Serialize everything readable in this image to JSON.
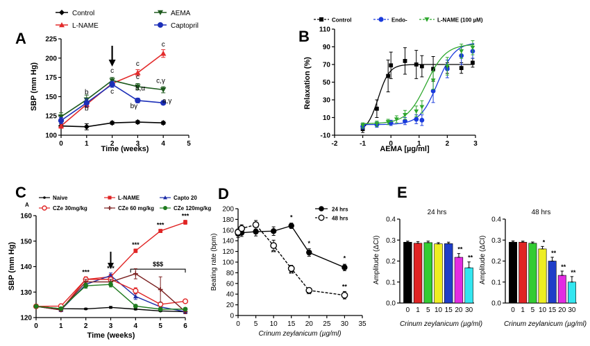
{
  "panel_labels": [
    "A",
    "B",
    "C",
    "D",
    "E"
  ],
  "chart_data": [
    {
      "panel": "A",
      "type": "line",
      "xlabel": "Time (weeks)",
      "ylabel": "SBP (mm Hg)",
      "xlim": [
        0,
        5
      ],
      "ylim": [
        100,
        225
      ],
      "xticks": [
        0,
        1,
        2,
        3,
        4,
        5
      ],
      "yticks": [
        100,
        125,
        150,
        175,
        200,
        225
      ],
      "arrow_at_x": 2,
      "series": [
        {
          "name": "Control",
          "color": "#000000",
          "marker": "diamond",
          "x": [
            0,
            1,
            2,
            3,
            4
          ],
          "y": [
            112,
            111,
            116,
            117,
            116
          ],
          "err": [
            3,
            4,
            2,
            2,
            2
          ]
        },
        {
          "name": "L-NAME",
          "color": "#e32b2b",
          "marker": "triangle",
          "x": [
            0,
            1,
            2,
            3,
            4
          ],
          "y": [
            112,
            140,
            167,
            181,
            206
          ],
          "err": [
            3,
            4,
            3,
            4,
            5
          ]
        },
        {
          "name": "AEMA",
          "color": "#1e5a1e",
          "marker": "triangle-down",
          "x": [
            0,
            1,
            2,
            3,
            4
          ],
          "y": [
            124,
            146,
            171,
            163,
            159
          ],
          "err": [
            5,
            6,
            4,
            4,
            4
          ]
        },
        {
          "name": "Captopril",
          "color": "#1c2fb8",
          "marker": "circle",
          "x": [
            0,
            1,
            2,
            3,
            4
          ],
          "y": [
            119,
            142,
            166,
            145,
            142
          ],
          "err": [
            4,
            5,
            4,
            3,
            2
          ]
        }
      ],
      "annotations": [
        {
          "text": "b",
          "x": 1,
          "y": 153
        },
        {
          "text": "b",
          "x": 1,
          "y": 132
        },
        {
          "text": "c",
          "x": 2,
          "y": 181
        },
        {
          "text": "c",
          "x": 2,
          "y": 154
        },
        {
          "text": "c",
          "x": 3,
          "y": 190
        },
        {
          "text": "c",
          "x": 3,
          "y": 173
        },
        {
          "text": "b,α",
          "x": 3.1,
          "y": 158
        },
        {
          "text": "bγ",
          "x": 2.85,
          "y": 135
        },
        {
          "text": "c",
          "x": 4,
          "y": 215
        },
        {
          "text": "c,γ",
          "x": 3.9,
          "y": 168
        },
        {
          "text": "a,γ",
          "x": 4.15,
          "y": 142
        }
      ]
    },
    {
      "panel": "B",
      "type": "scatter",
      "xlabel": "AEMA [µg/ml]",
      "ylabel": "Relaxation (%)",
      "xlim": [
        -2,
        3
      ],
      "ylim": [
        -10,
        110
      ],
      "xticks": [
        -2,
        -1,
        0,
        1,
        2,
        3
      ],
      "yticks": [
        -10,
        10,
        30,
        50,
        70,
        90,
        110
      ],
      "series": [
        {
          "name": "Control",
          "color": "#000000",
          "marker": "square",
          "x": [
            -1,
            -0.5,
            -0.1,
            0,
            0.5,
            0.9,
            1.1,
            1.5,
            2,
            2.5,
            2.9
          ],
          "y": [
            -3,
            20,
            57,
            69,
            74,
            70,
            68,
            65,
            66,
            66,
            72
          ],
          "err": [
            4,
            10,
            18,
            15,
            15,
            16,
            12,
            14,
            6,
            6,
            5
          ]
        },
        {
          "name": "Endo-",
          "color": "#1a3bdc",
          "marker": "circle",
          "x": [
            -1,
            -0.5,
            0,
            0.5,
            0.9,
            1.1,
            1.5,
            2,
            2.5,
            2.9
          ],
          "y": [
            0,
            2,
            4,
            6,
            8,
            7,
            40,
            65,
            80,
            85
          ],
          "err": [
            3,
            3,
            3,
            4,
            5,
            6,
            13,
            10,
            10,
            8
          ]
        },
        {
          "name": "L-NAME (100 µM)",
          "color": "#2fa82f",
          "marker": "triangle-down",
          "x": [
            -1,
            -0.5,
            -0.1,
            0.2,
            0.5,
            0.9,
            1.1,
            1.5,
            2,
            2.5,
            2.9
          ],
          "y": [
            1,
            3,
            5,
            8,
            13,
            17,
            22,
            52,
            68,
            85,
            89
          ],
          "err": [
            3,
            3,
            3,
            4,
            5,
            6,
            7,
            10,
            10,
            8,
            8
          ]
        }
      ]
    },
    {
      "panel": "C",
      "type": "line",
      "xlabel": "Time (weeks)",
      "ylabel": "SBP (mm Hg)",
      "xlim": [
        0,
        6
      ],
      "ylim": [
        120,
        160
      ],
      "xticks": [
        0,
        1,
        2,
        3,
        4,
        5,
        6
      ],
      "yticks": [
        120,
        130,
        140,
        150,
        160
      ],
      "arrow_at_x": 3,
      "bracket": {
        "from": 3.8,
        "to": 6,
        "y": 139,
        "label": "$$$"
      },
      "series": [
        {
          "name": "Naive",
          "color": "#000000",
          "marker": "circle-small",
          "x": [
            0,
            1,
            2,
            3,
            4,
            5,
            6
          ],
          "y": [
            124.4,
            123.5,
            123.4,
            124,
            123.3,
            122.6,
            122.3
          ],
          "err": [
            0.4,
            0.3,
            0.3,
            0.4,
            0.3,
            0.3,
            0.3
          ]
        },
        {
          "name": "L-NAME",
          "color": "#e02424",
          "marker": "square",
          "x": [
            0,
            1,
            2,
            3,
            4,
            5,
            6
          ],
          "y": [
            124.4,
            123,
            135,
            136,
            146.2,
            154,
            157.4
          ],
          "err": [
            0.4,
            0.5,
            1,
            1,
            0.7,
            0.6,
            0.8
          ]
        },
        {
          "name": "Capto 20",
          "color": "#1c2ca8",
          "marker": "triangle",
          "x": [
            0,
            1,
            2,
            3,
            4,
            5,
            6
          ],
          "y": [
            124.4,
            123,
            133,
            136.5,
            128.3,
            124.2,
            122.3
          ],
          "err": [
            0.4,
            0.5,
            1,
            1,
            1.2,
            0.8,
            0.5
          ]
        },
        {
          "name": "CZe 30mg/kg",
          "color": "#e02424",
          "marker": "circle-open",
          "x": [
            0,
            1,
            2,
            3,
            4,
            5,
            6
          ],
          "y": [
            124.4,
            124.5,
            135,
            135,
            130.5,
            125.2,
            126.4
          ],
          "err": [
            0.4,
            0.5,
            1,
            1,
            1.2,
            0.8,
            0.6
          ]
        },
        {
          "name": "CZe 60 mg/kg",
          "color": "#7a1f1f",
          "marker": "plus",
          "x": [
            0,
            1,
            2,
            3,
            4,
            5,
            6
          ],
          "y": [
            124.4,
            123,
            134,
            134,
            137.2,
            131,
            122.3
          ],
          "err": [
            0.4,
            0.5,
            1,
            1,
            2,
            5,
            0.8
          ]
        },
        {
          "name": "CZe 120mg/kg",
          "color": "#1e7a1e",
          "marker": "circle",
          "x": [
            0,
            1,
            2,
            3,
            4,
            5,
            6
          ],
          "y": [
            124.4,
            123.5,
            132.5,
            133,
            124.5,
            123.3,
            123.3
          ],
          "err": [
            0.4,
            0.5,
            1,
            1,
            0.6,
            0.6,
            0.6
          ]
        }
      ],
      "annotations": [
        {
          "text": "***",
          "x": 2,
          "y": 137
        },
        {
          "text": "***",
          "x": 3,
          "y": 138.5
        },
        {
          "text": "***",
          "x": 4,
          "y": 147.8
        },
        {
          "text": "***",
          "x": 5,
          "y": 155.5
        },
        {
          "text": "***",
          "x": 6,
          "y": 159
        }
      ],
      "sublabel": "A"
    },
    {
      "panel": "D",
      "type": "line",
      "xlabel": "Crinum zeylanicum (µg/ml)",
      "ylabel": "Beating rate (bpm)",
      "xlim": [
        0,
        35
      ],
      "ylim": [
        0,
        200
      ],
      "xticks": [
        0,
        5,
        10,
        15,
        20,
        25,
        30,
        35
      ],
      "yticks": [
        0,
        20,
        40,
        60,
        80,
        100,
        120,
        140,
        160,
        180,
        200
      ],
      "series": [
        {
          "name": "24 hrs",
          "color": "#000000",
          "marker": "circle",
          "x": [
            0,
            1,
            5,
            10,
            15,
            20,
            30
          ],
          "y": [
            153,
            155,
            157,
            158,
            168,
            118,
            90
          ],
          "err": [
            7,
            7,
            8,
            8,
            5,
            7,
            6
          ]
        },
        {
          "name": "48 hrs",
          "color": "#000000",
          "marker": "circle-open",
          "x": [
            0,
            1,
            5,
            10,
            15,
            20,
            30
          ],
          "y": [
            156,
            163,
            170,
            131,
            88,
            47,
            38
          ],
          "err": [
            6,
            7,
            8,
            10,
            6,
            5,
            7
          ]
        }
      ],
      "annotations": [
        {
          "text": "*",
          "x": 15,
          "y": 180
        },
        {
          "text": "*",
          "x": 20,
          "y": 131
        },
        {
          "text": "*",
          "x": 30,
          "y": 103
        },
        {
          "text": "**",
          "x": 10,
          "y": 114
        },
        {
          "text": "**",
          "x": 15,
          "y": 74
        },
        {
          "text": "**",
          "x": 20,
          "y": 36
        },
        {
          "text": "**",
          "x": 30,
          "y": 50
        }
      ]
    },
    {
      "panel": "E",
      "type": "bar",
      "title": "24 hrs",
      "xlabel": "Crinum zeylanicum (µg/ml)",
      "ylabel": "Amplitude (ΔCI)",
      "categories": [
        "0",
        "1",
        "5",
        "10",
        "15",
        "20",
        "30"
      ],
      "values": [
        0.29,
        0.285,
        0.288,
        0.282,
        0.283,
        0.218,
        0.168
      ],
      "err": [
        0.005,
        0.008,
        0.007,
        0.006,
        0.007,
        0.018,
        0.028
      ],
      "colors": [
        "#000000",
        "#e02424",
        "#33cc33",
        "#eeee22",
        "#1f3ec8",
        "#e22ce2",
        "#33e6f0"
      ],
      "ylim": [
        0,
        0.4
      ],
      "yticks": [
        0,
        0.1,
        0.2,
        0.3,
        0.4
      ],
      "annotations": [
        {
          "text": "**",
          "index": 5
        },
        {
          "text": "**",
          "index": 6
        }
      ]
    },
    {
      "panel": "E",
      "type": "bar",
      "title": "48 hrs",
      "xlabel": "Crinum zeylanicum (µg/ml)",
      "ylabel": "Amplitude (ΔCI)",
      "categories": [
        "0",
        "1",
        "5",
        "10",
        "15",
        "20",
        "30"
      ],
      "values": [
        0.29,
        0.29,
        0.285,
        0.258,
        0.2,
        0.132,
        0.1
      ],
      "err": [
        0.006,
        0.005,
        0.006,
        0.012,
        0.018,
        0.02,
        0.026
      ],
      "colors": [
        "#000000",
        "#e02424",
        "#33cc33",
        "#eeee22",
        "#1f3ec8",
        "#e22ce2",
        "#33e6f0"
      ],
      "ylim": [
        0,
        0.4
      ],
      "yticks": [
        0,
        0.1,
        0.2,
        0.3,
        0.4
      ],
      "annotations": [
        {
          "text": "*",
          "index": 3
        },
        {
          "text": "**",
          "index": 4
        },
        {
          "text": "**",
          "index": 5
        },
        {
          "text": "**",
          "index": 6
        }
      ]
    }
  ]
}
